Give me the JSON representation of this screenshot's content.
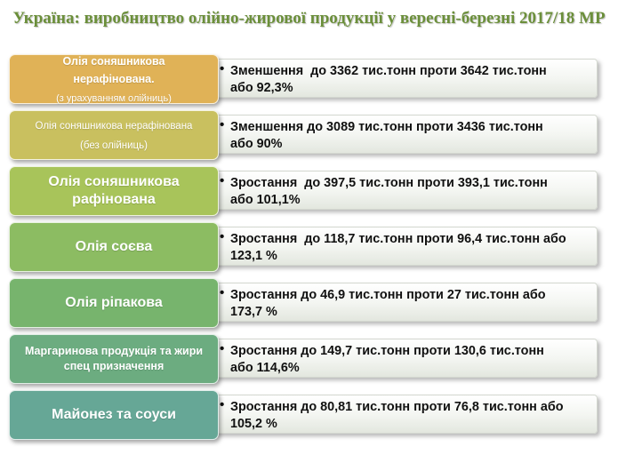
{
  "title": "Україна: виробництво олійно-жирової продукції у вересні-березні 2017/18 МР",
  "rows": [
    {
      "label": "Олія соняшникова нерафінована.",
      "sublabel": "(з урахуванням олійниць)",
      "text": "Зменшення  до 3362 тис.тонн проти 3642 тис.тонн\nабо 92,3%",
      "color": "#e0b257"
    },
    {
      "label": "Олія соняшникова нерафінована",
      "sublabel": "(без олійниць)",
      "text": "Зменшення до 3089 тис.тонн проти 3436 тис.тонн\nабо 90%",
      "color": "#c9c05f"
    },
    {
      "label": "Олія соняшникова рафінована",
      "sublabel": "",
      "text": "Зростання  до 397,5 тис.тонн проти 393,1 тис.тонн\nабо 101,1%",
      "color": "#a8c45a"
    },
    {
      "label": "Олія соєва",
      "sublabel": "",
      "text": "Зростання  до 118,7 тис.тонн проти 96,4 тис.тонн або\n123,1 %",
      "color": "#8cbc62"
    },
    {
      "label": "Олія ріпакова",
      "sublabel": "",
      "text": "Зростання до 46,9 тис.тонн проти 27 тис.тонн або\n173,7 %",
      "color": "#77b46d"
    },
    {
      "label": "Маргаринова продукція та жири спец призначення",
      "sublabel": "",
      "text": "Зростання до 149,7 тис.тонн проти 130,6 тис.тонн\nабо 114,6%",
      "color": "#6cac80"
    },
    {
      "label": "Майонез та соуси",
      "sublabel": "",
      "text": "Зростання до 80,81 тис.тонн проти 76,8 тис.тонн або\n105,2 %",
      "color": "#66a796"
    }
  ]
}
